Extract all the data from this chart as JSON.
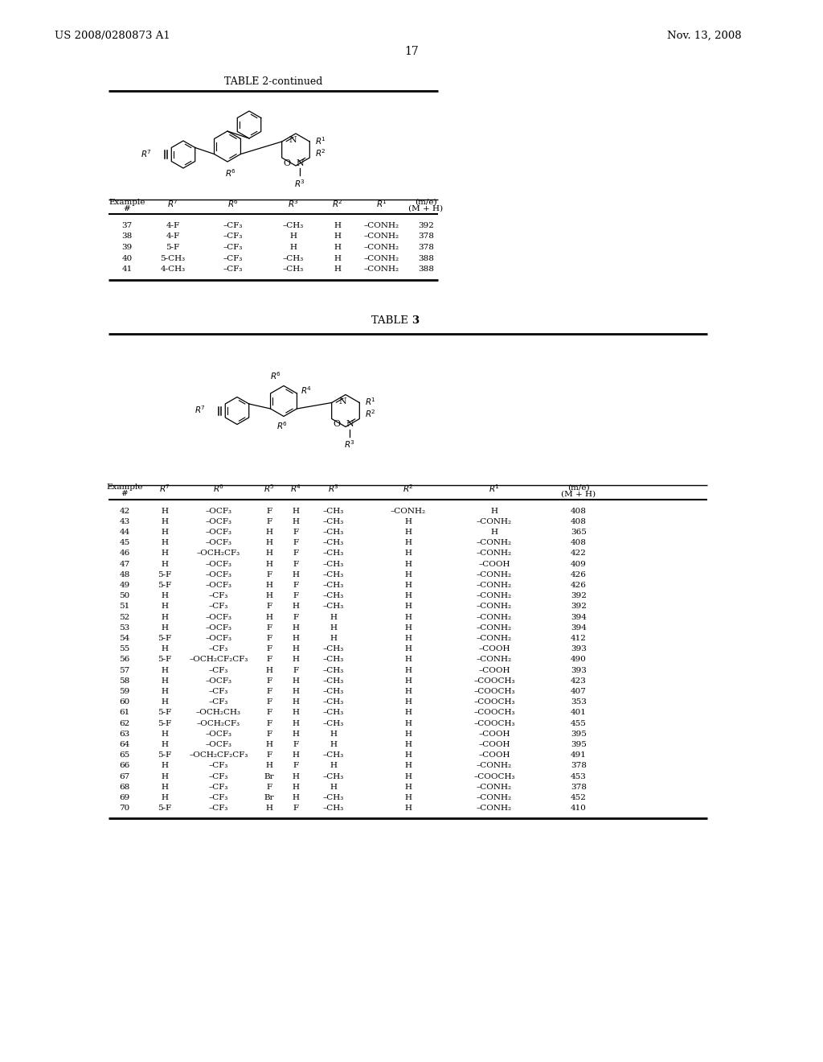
{
  "page_header_left": "US 2008/0280873 A1",
  "page_header_right": "Nov. 13, 2008",
  "page_number": "17",
  "table2_title": "TABLE 2-continued",
  "table2_rows": [
    [
      "37",
      "4-F",
      "–CF₃",
      "–CH₃",
      "H",
      "–CONH₂",
      "392"
    ],
    [
      "38",
      "4-F",
      "–CF₃",
      "H",
      "H",
      "–CONH₂",
      "378"
    ],
    [
      "39",
      "5-F",
      "–CF₃",
      "H",
      "H",
      "–CONH₂",
      "378"
    ],
    [
      "40",
      "5-CH₃",
      "–CF₃",
      "–CH₃",
      "H",
      "–CONH₂",
      "388"
    ],
    [
      "41",
      "4-CH₃",
      "–CF₃",
      "–CH₃",
      "H",
      "–CONH₂",
      "388"
    ]
  ],
  "table3_rows": [
    [
      "42",
      "H",
      "–OCF₃",
      "F",
      "H",
      "–CH₃",
      "–CONH₂",
      "H",
      "408"
    ],
    [
      "43",
      "H",
      "–OCF₃",
      "F",
      "H",
      "–CH₃",
      "H",
      "–CONH₂",
      "408"
    ],
    [
      "44",
      "H",
      "–OCF₃",
      "H",
      "F",
      "–CH₃",
      "H",
      "H",
      "365"
    ],
    [
      "45",
      "H",
      "–OCF₃",
      "H",
      "F",
      "–CH₃",
      "H",
      "–CONH₂",
      "408"
    ],
    [
      "46",
      "H",
      "–OCH₂CF₃",
      "H",
      "F",
      "–CH₃",
      "H",
      "–CONH₂",
      "422"
    ],
    [
      "47",
      "H",
      "–OCF₃",
      "H",
      "F",
      "–CH₃",
      "H",
      "–COOH",
      "409"
    ],
    [
      "48",
      "5-F",
      "–OCF₃",
      "F",
      "H",
      "–CH₃",
      "H",
      "–CONH₂",
      "426"
    ],
    [
      "49",
      "5-F",
      "–OCF₃",
      "H",
      "F",
      "–CH₃",
      "H",
      "–CONH₂",
      "426"
    ],
    [
      "50",
      "H",
      "–CF₃",
      "H",
      "F",
      "–CH₃",
      "H",
      "–CONH₂",
      "392"
    ],
    [
      "51",
      "H",
      "–CF₃",
      "F",
      "H",
      "–CH₃",
      "H",
      "–CONH₂",
      "392"
    ],
    [
      "52",
      "H",
      "–OCF₃",
      "H",
      "F",
      "H",
      "H",
      "–CONH₂",
      "394"
    ],
    [
      "53",
      "H",
      "–OCF₃",
      "F",
      "H",
      "H",
      "H",
      "–CONH₂",
      "394"
    ],
    [
      "54",
      "5-F",
      "–OCF₃",
      "F",
      "H",
      "H",
      "H",
      "–CONH₂",
      "412"
    ],
    [
      "55",
      "H",
      "–CF₃",
      "F",
      "H",
      "–CH₃",
      "H",
      "–COOH",
      "393"
    ],
    [
      "56",
      "5-F",
      "–OCH₂CF₂CF₃",
      "F",
      "H",
      "–CH₃",
      "H",
      "–CONH₂",
      "490"
    ],
    [
      "57",
      "H",
      "–CF₃",
      "H",
      "F",
      "–CH₃",
      "H",
      "–COOH",
      "393"
    ],
    [
      "58",
      "H",
      "–OCF₃",
      "F",
      "H",
      "–CH₃",
      "H",
      "–COOCH₃",
      "423"
    ],
    [
      "59",
      "H",
      "–CF₃",
      "F",
      "H",
      "–CH₃",
      "H",
      "–COOCH₃",
      "407"
    ],
    [
      "60",
      "H",
      "–CF₃",
      "F",
      "H",
      "–CH₃",
      "H",
      "–COOCH₃",
      "353"
    ],
    [
      "61",
      "5-F",
      "–OCH₂CH₃",
      "F",
      "H",
      "–CH₃",
      "H",
      "–COOCH₃",
      "401"
    ],
    [
      "62",
      "5-F",
      "–OCH₂CF₃",
      "F",
      "H",
      "–CH₃",
      "H",
      "–COOCH₃",
      "455"
    ],
    [
      "63",
      "H",
      "–OCF₃",
      "F",
      "H",
      "H",
      "H",
      "–COOH",
      "395"
    ],
    [
      "64",
      "H",
      "–OCF₃",
      "H",
      "F",
      "H",
      "H",
      "–COOH",
      "395"
    ],
    [
      "65",
      "5-F",
      "–OCH₂CF₂CF₃",
      "F",
      "H",
      "–CH₃",
      "H",
      "–COOH",
      "491"
    ],
    [
      "66",
      "H",
      "–CF₃",
      "H",
      "F",
      "H",
      "H",
      "–CONH₂",
      "378"
    ],
    [
      "67",
      "H",
      "–CF₃",
      "Br",
      "H",
      "–CH₃",
      "H",
      "–COOCH₃",
      "453"
    ],
    [
      "68",
      "H",
      "–CF₃",
      "F",
      "H",
      "H",
      "H",
      "–CONH₂",
      "378"
    ],
    [
      "69",
      "H",
      "–CF₃",
      "Br",
      "H",
      "–CH₃",
      "H",
      "–CONH₂",
      "452"
    ],
    [
      "70",
      "5-F",
      "–CF₃",
      "H",
      "F",
      "–CH₃",
      "H",
      "–CONH₂",
      "410"
    ]
  ]
}
